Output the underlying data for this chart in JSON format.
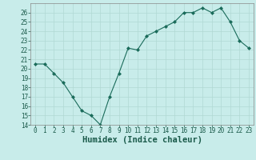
{
  "x": [
    0,
    1,
    2,
    3,
    4,
    5,
    6,
    7,
    8,
    9,
    10,
    11,
    12,
    13,
    14,
    15,
    16,
    17,
    18,
    19,
    20,
    21,
    22,
    23
  ],
  "y": [
    20.5,
    20.5,
    19.5,
    18.5,
    17.0,
    15.5,
    15.0,
    14.0,
    17.0,
    19.5,
    22.2,
    22.0,
    23.5,
    24.0,
    24.5,
    25.0,
    26.0,
    26.0,
    26.5,
    26.0,
    26.5,
    25.0,
    23.0,
    22.2
  ],
  "line_color": "#1a6b5a",
  "marker": "D",
  "marker_size": 2.0,
  "bg_color": "#c8ecea",
  "grid_color": "#b0d8d4",
  "xlabel": "Humidex (Indice chaleur)",
  "ylim": [
    14,
    27
  ],
  "xlim": [
    -0.5,
    23.5
  ],
  "yticks": [
    14,
    15,
    16,
    17,
    18,
    19,
    20,
    21,
    22,
    23,
    24,
    25,
    26
  ],
  "xticks": [
    0,
    1,
    2,
    3,
    4,
    5,
    6,
    7,
    8,
    9,
    10,
    11,
    12,
    13,
    14,
    15,
    16,
    17,
    18,
    19,
    20,
    21,
    22,
    23
  ],
  "tick_fontsize": 5.5,
  "xlabel_fontsize": 7.5,
  "tick_color": "#1a5a4a",
  "spine_color": "#888888",
  "linewidth": 0.8
}
